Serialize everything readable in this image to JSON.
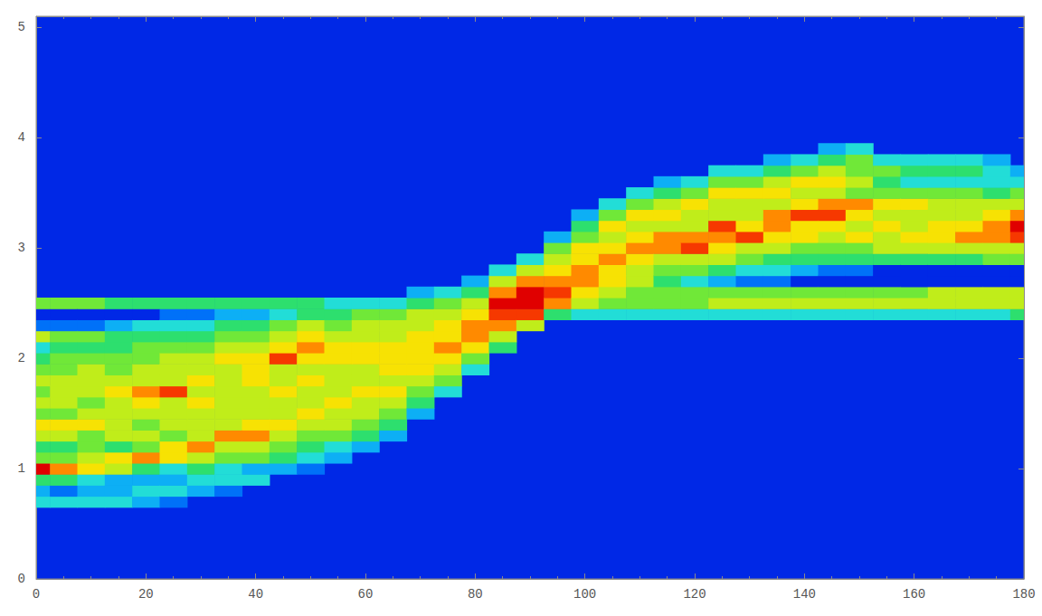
{
  "chart_data": {
    "type": "heatmap",
    "xlim": [
      0,
      180
    ],
    "xticks": [
      0,
      20,
      40,
      60,
      80,
      100,
      120,
      140,
      160,
      180
    ],
    "ylim": [
      0,
      5.1
    ],
    "yticks": [
      0,
      1,
      2,
      3,
      4,
      5
    ],
    "zlim": [
      0,
      10
    ],
    "grid": false,
    "cell_width": 5,
    "cell_height": 0.1,
    "columns": [
      {
        "x": 0,
        "y0": 0.7,
        "values": [
          3,
          2,
          4,
          10,
          5,
          4,
          6,
          7,
          5,
          6,
          5,
          6,
          5,
          4,
          3,
          6,
          1,
          0,
          5
        ]
      },
      {
        "x": 5,
        "y0": 0.7,
        "values": [
          3,
          1,
          4,
          8,
          5,
          4,
          6,
          7,
          5,
          6,
          6,
          6,
          5,
          5,
          4,
          5,
          1,
          0,
          5
        ]
      },
      {
        "x": 10,
        "y0": 0.7,
        "values": [
          3,
          2,
          3,
          7,
          6,
          5,
          5,
          7,
          6,
          5,
          6,
          6,
          6,
          5,
          4,
          5,
          1,
          0,
          5
        ]
      },
      {
        "x": 15,
        "y0": 0.7,
        "values": [
          3,
          2,
          2,
          6,
          7,
          4,
          6,
          6,
          6,
          6,
          7,
          6,
          5,
          5,
          4,
          4,
          2,
          0,
          4
        ]
      },
      {
        "x": 20,
        "y0": 0.7,
        "values": [
          2,
          3,
          2,
          4,
          8,
          5,
          6,
          5,
          6,
          7,
          8,
          6,
          6,
          5,
          5,
          4,
          3,
          0,
          4
        ]
      },
      {
        "x": 25,
        "y0": 0.7,
        "values": [
          1,
          3,
          2,
          3,
          7,
          7,
          5,
          6,
          6,
          6,
          9,
          6,
          6,
          6,
          5,
          4,
          3,
          1,
          4
        ]
      },
      {
        "x": 30,
        "y0": 0.8,
        "values": [
          2,
          3,
          4,
          6,
          8,
          6,
          6,
          6,
          7,
          6,
          7,
          6,
          6,
          5,
          4,
          3,
          1,
          4
        ]
      },
      {
        "x": 35,
        "y0": 0.8,
        "values": [
          1,
          3,
          3,
          5,
          6,
          8,
          6,
          6,
          6,
          6,
          6,
          6,
          7,
          6,
          5,
          4,
          2,
          4
        ]
      },
      {
        "x": 40,
        "y0": 0.9,
        "values": [
          3,
          2,
          5,
          6,
          8,
          7,
          6,
          6,
          6,
          7,
          7,
          7,
          6,
          5,
          4,
          2,
          4
        ]
      },
      {
        "x": 45,
        "y0": 1.0,
        "values": [
          2,
          4,
          5,
          6,
          7,
          6,
          6,
          7,
          6,
          6,
          9,
          7,
          6,
          5,
          3,
          4
        ]
      },
      {
        "x": 50,
        "y0": 1.0,
        "values": [
          1,
          3,
          4,
          5,
          6,
          7,
          6,
          6,
          7,
          6,
          7,
          8,
          7,
          6,
          4,
          4
        ]
      },
      {
        "x": 55,
        "y0": 1.1,
        "values": [
          2,
          3,
          5,
          6,
          6,
          7,
          6,
          6,
          6,
          7,
          7,
          6,
          5,
          4,
          3
        ]
      },
      {
        "x": 60,
        "y0": 1.2,
        "values": [
          2,
          4,
          5,
          6,
          6,
          7,
          6,
          6,
          7,
          7,
          6,
          6,
          5,
          3
        ]
      },
      {
        "x": 65,
        "y0": 1.3,
        "values": [
          2,
          4,
          5,
          6,
          7,
          6,
          7,
          7,
          7,
          6,
          6,
          5,
          3
        ]
      },
      {
        "x": 70,
        "y0": 1.5,
        "values": [
          2,
          4,
          5,
          6,
          7,
          7,
          7,
          7,
          6,
          6,
          4,
          2
        ]
      },
      {
        "x": 75,
        "y0": 1.7,
        "values": [
          3,
          5,
          6,
          7,
          8,
          7,
          7,
          6,
          5,
          3
        ]
      },
      {
        "x": 80,
        "y0": 1.9,
        "values": [
          3,
          5,
          7,
          8,
          8,
          7,
          6,
          4,
          2
        ]
      },
      {
        "x": 85,
        "y0": 2.1,
        "values": [
          4,
          6,
          8,
          9,
          10,
          8,
          6,
          3
        ]
      },
      {
        "x": 90,
        "y0": 2.3,
        "values": [
          6,
          9,
          10,
          10,
          8,
          6,
          3
        ]
      },
      {
        "x": 95,
        "y0": 2.4,
        "values": [
          4,
          8,
          9,
          8,
          7,
          6,
          5,
          2
        ]
      },
      {
        "x": 100,
        "y0": 2.4,
        "values": [
          3,
          6,
          7,
          8,
          8,
          7,
          7,
          5,
          4,
          2
        ]
      },
      {
        "x": 105,
        "y0": 2.4,
        "values": [
          3,
          5,
          6,
          7,
          7,
          8,
          7,
          6,
          7,
          5,
          3
        ]
      },
      {
        "x": 110,
        "y0": 2.4,
        "values": [
          3,
          5,
          5,
          6,
          6,
          7,
          8,
          7,
          6,
          7,
          5,
          3
        ]
      },
      {
        "x": 115,
        "y0": 2.4,
        "values": [
          3,
          5,
          5,
          4,
          5,
          6,
          8,
          8,
          6,
          7,
          6,
          4,
          2
        ]
      },
      {
        "x": 120,
        "y0": 2.4,
        "values": [
          3,
          5,
          5,
          3,
          5,
          6,
          9,
          8,
          6,
          6,
          7,
          5,
          3
        ]
      },
      {
        "x": 125,
        "y0": 2.4,
        "values": [
          3,
          6,
          5,
          2,
          4,
          6,
          7,
          8,
          9,
          6,
          6,
          7,
          5,
          3
        ]
      },
      {
        "x": 130,
        "y0": 2.4,
        "values": [
          3,
          6,
          5,
          1,
          3,
          5,
          6,
          9,
          7,
          6,
          6,
          7,
          5,
          3
        ]
      },
      {
        "x": 135,
        "y0": 2.4,
        "values": [
          3,
          6,
          5,
          1,
          3,
          4,
          6,
          7,
          8,
          8,
          6,
          7,
          6,
          4,
          2
        ]
      },
      {
        "x": 140,
        "y0": 2.4,
        "values": [
          3,
          6,
          5,
          0,
          2,
          4,
          5,
          7,
          7,
          9,
          7,
          6,
          7,
          5,
          3
        ]
      },
      {
        "x": 145,
        "y0": 2.4,
        "values": [
          3,
          6,
          5,
          0,
          1,
          4,
          5,
          6,
          7,
          9,
          8,
          6,
          7,
          6,
          4,
          2
        ]
      },
      {
        "x": 150,
        "y0": 2.4,
        "values": [
          3,
          6,
          5,
          0,
          1,
          4,
          5,
          7,
          6,
          7,
          8,
          5,
          6,
          5,
          5,
          3
        ]
      },
      {
        "x": 155,
        "y0": 2.4,
        "values": [
          3,
          6,
          5,
          0,
          0,
          4,
          6,
          6,
          7,
          6,
          7,
          5,
          4,
          5,
          3
        ]
      },
      {
        "x": 160,
        "y0": 2.4,
        "values": [
          3,
          6,
          5,
          0,
          0,
          4,
          6,
          7,
          6,
          6,
          7,
          5,
          3,
          4,
          3
        ]
      },
      {
        "x": 165,
        "y0": 2.4,
        "values": [
          3,
          6,
          6,
          0,
          0,
          4,
          6,
          7,
          7,
          6,
          6,
          5,
          3,
          4,
          3
        ]
      },
      {
        "x": 170,
        "y0": 2.4,
        "values": [
          3,
          6,
          6,
          0,
          0,
          4,
          6,
          8,
          7,
          6,
          6,
          5,
          3,
          4,
          3
        ]
      },
      {
        "x": 175,
        "y0": 2.4,
        "values": [
          3,
          6,
          6,
          0,
          0,
          5,
          6,
          8,
          8,
          7,
          6,
          4,
          3,
          3,
          2
        ]
      },
      {
        "x": 180,
        "y0": 2.4,
        "values": [
          4,
          6,
          6,
          0,
          0,
          5,
          6,
          9,
          10,
          8,
          6,
          5,
          3,
          2
        ]
      }
    ]
  }
}
